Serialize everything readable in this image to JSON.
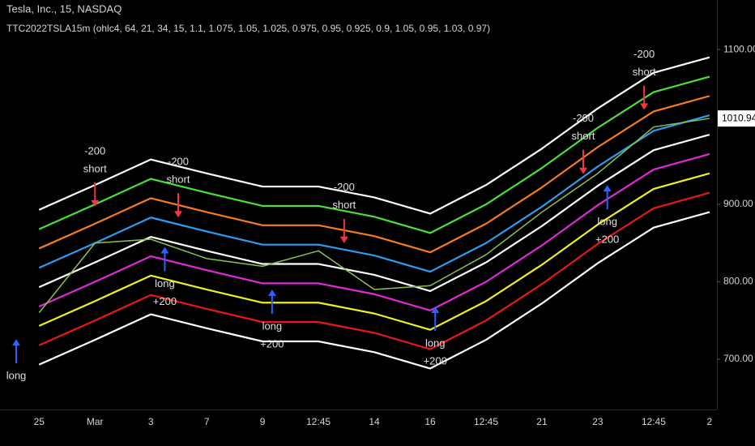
{
  "chart_data": {
    "type": "line",
    "title": "Tesla, Inc., 15, NASDAQ",
    "subtitle": "TTC2022TSLA15m (ohlc4, 64, 21, 34, 15, 1.1, 1.075, 1.05, 1.025, 0.975, 0.95, 0.925, 0.9, 1.05, 0.95, 1.03, 0.97)",
    "categories": [
      "25",
      "Mar",
      "3",
      "7",
      "9",
      "12:45",
      "14",
      "16",
      "12:45",
      "21",
      "23",
      "12:45",
      "2"
    ],
    "xlim": [
      -0.7,
      12.06
    ],
    "ylim": [
      635,
      1164
    ],
    "yticks": [
      {
        "value": 700,
        "label": "700.00"
      },
      {
        "value": 800,
        "label": "800.00"
      },
      {
        "value": 900,
        "label": "900.00"
      },
      {
        "value": 1100,
        "label": "1100.00"
      }
    ],
    "series": [
      {
        "color": "#ffffff",
        "values": [
          893,
          925,
          958,
          940,
          923,
          923,
          909,
          888,
          925,
          972,
          1024,
          1070,
          1090
        ]
      },
      {
        "color": "#4cde3a",
        "values": [
          868,
          900,
          933,
          915,
          898,
          898,
          884,
          863,
          900,
          947,
          999,
          1045,
          1065
        ]
      },
      {
        "color": "#f57c20",
        "values": [
          843,
          875,
          908,
          890,
          873,
          873,
          859,
          838,
          875,
          922,
          974,
          1020,
          1040
        ]
      },
      {
        "color": "#2e9cf0",
        "values": [
          818,
          850,
          883,
          865,
          848,
          848,
          834,
          813,
          850,
          897,
          949,
          995,
          1015
        ]
      },
      {
        "color": "#ffffff",
        "values": [
          793,
          825,
          858,
          840,
          823,
          823,
          809,
          788,
          825,
          872,
          924,
          970,
          990
        ]
      },
      {
        "color": "#e02ad8",
        "values": [
          768,
          800,
          833,
          815,
          798,
          798,
          784,
          763,
          800,
          847,
          899,
          945,
          965
        ]
      },
      {
        "color": "#f0f020",
        "values": [
          743,
          775,
          808,
          790,
          773,
          773,
          759,
          738,
          775,
          822,
          874,
          920,
          940
        ]
      },
      {
        "color": "#e81818",
        "values": [
          718,
          750,
          783,
          765,
          748,
          748,
          734,
          713,
          750,
          797,
          849,
          895,
          915
        ]
      },
      {
        "color": "#ffffff",
        "values": [
          693,
          725,
          758,
          740,
          723,
          723,
          709,
          688,
          725,
          772,
          824,
          870,
          890
        ]
      },
      {
        "color": "#8bc34a",
        "values": [
          760,
          850,
          855,
          830,
          820,
          840,
          790,
          795,
          835,
          890,
          940,
          1000,
          1011
        ]
      }
    ],
    "last_price": 1010.94,
    "annotations": [
      {
        "text": [
          "-200",
          "short"
        ],
        "x": 1,
        "y": 897,
        "color": "#f23645"
      },
      {
        "text": [
          "-200",
          "short"
        ],
        "x": 2.49,
        "y": 883,
        "color": "#f23645"
      },
      {
        "text": [
          "-200",
          "short"
        ],
        "x": 5.46,
        "y": 850,
        "color": "#f23645"
      },
      {
        "text": [
          "-200",
          "short"
        ],
        "x": 9.74,
        "y": 939,
        "color": "#f23645"
      },
      {
        "text": [
          "-200",
          "short"
        ],
        "x": 10.83,
        "y": 1022,
        "color": "#f23645"
      },
      {
        "text": [
          "long"
        ],
        "x": -0.41,
        "y": 726,
        "color": "#2962ff"
      },
      {
        "text": [
          "long",
          "+200"
        ],
        "x": 2.25,
        "y": 845,
        "color": "#2962ff"
      },
      {
        "text": [
          "long",
          "+200"
        ],
        "x": 4.17,
        "y": 790,
        "color": "#2962ff"
      },
      {
        "text": [
          "long",
          "+200"
        ],
        "x": 7.09,
        "y": 768,
        "color": "#2962ff"
      },
      {
        "text": [
          "long",
          "+200"
        ],
        "x": 10.17,
        "y": 925,
        "color": "#2962ff"
      }
    ]
  }
}
